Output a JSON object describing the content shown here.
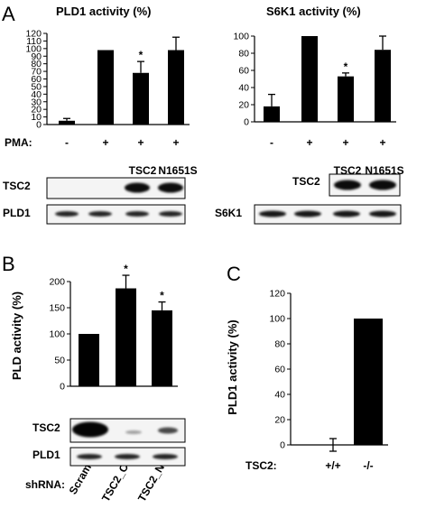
{
  "chart_data": [
    {
      "panel": "A",
      "type": "bar",
      "title": "PLD1 activity (%)",
      "categories": [
        "-",
        "+",
        "+",
        "+"
      ],
      "condition_label": "PMA:",
      "lane_labels": [
        "",
        "",
        "TSC2",
        "N1651S"
      ],
      "values": [
        5,
        98,
        68,
        98
      ],
      "errors": [
        3,
        0,
        15,
        17
      ],
      "significance": [
        "",
        "",
        "*",
        ""
      ],
      "yticks": [
        0,
        10,
        20,
        30,
        40,
        50,
        60,
        70,
        80,
        90,
        100,
        110,
        120
      ],
      "ylim": [
        0,
        120
      ],
      "blots": [
        "TSC2",
        "PLD1"
      ]
    },
    {
      "panel": "A",
      "type": "bar",
      "title": "S6K1 activity (%)",
      "categories": [
        "-",
        "+",
        "+",
        "+"
      ],
      "lane_labels": [
        "",
        "",
        "TSC2",
        "N1651S"
      ],
      "values": [
        18,
        100,
        53,
        84
      ],
      "errors": [
        14,
        0,
        4,
        16
      ],
      "significance": [
        "",
        "",
        "*",
        ""
      ],
      "yticks": [
        0,
        20,
        40,
        60,
        80,
        100
      ],
      "ylim": [
        0,
        100
      ],
      "blots": [
        "TSC2",
        "S6K1"
      ]
    },
    {
      "panel": "B",
      "type": "bar",
      "ylabel": "PLD activity (%)",
      "categories": [
        "Scram",
        "TSC2_C",
        "TSC2_N"
      ],
      "condition_label": "shRNA:",
      "values": [
        100,
        187,
        145
      ],
      "errors": [
        0,
        25,
        16
      ],
      "significance": [
        "",
        "*",
        "*"
      ],
      "yticks": [
        0,
        50,
        100,
        150,
        200
      ],
      "ylim": [
        0,
        200
      ],
      "blots": [
        "TSC2",
        "PLD1"
      ]
    },
    {
      "panel": "C",
      "type": "bar",
      "ylabel": "PLD1 activity (%)",
      "categories": [
        "+/+",
        "-/-"
      ],
      "condition_label": "TSC2:",
      "values": [
        0,
        100
      ],
      "errors": [
        5,
        0
      ],
      "yticks": [
        0,
        20,
        40,
        60,
        80,
        100,
        120
      ],
      "ylim": [
        0,
        120
      ]
    }
  ]
}
